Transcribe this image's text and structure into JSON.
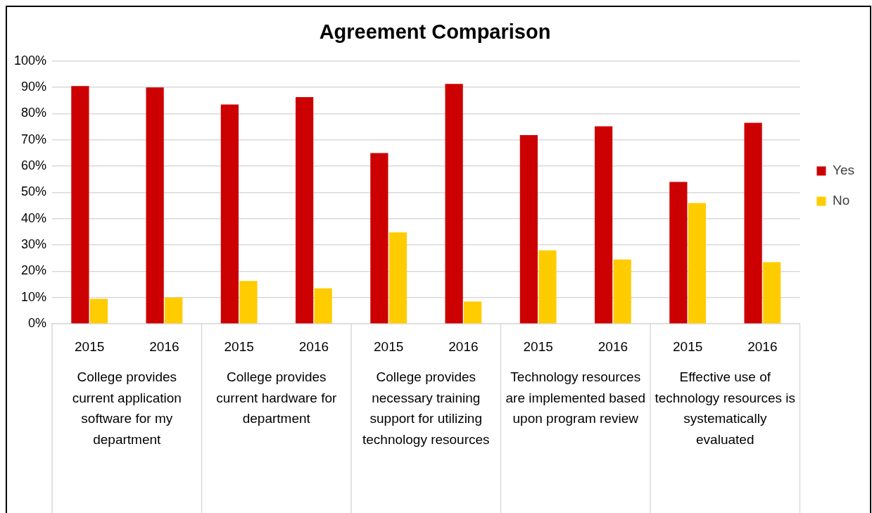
{
  "chart_data": {
    "type": "bar",
    "title": "Agreement Comparison",
    "categories": [
      "2015",
      "2016",
      "2015",
      "2016",
      "2015",
      "2016",
      "2015",
      "2016",
      "2015",
      "2016"
    ],
    "annotations": [
      "College provides current application software for my department",
      "College provides current hardware for department",
      "College provides necessary training support for utilizing technology resources",
      "Technology resources are implemented based upon program review",
      "Effective use of technology resources is systematically evaluated"
    ],
    "series": [
      {
        "name": "Yes",
        "color": "#cc0000",
        "values": [
          90.5,
          90,
          83.5,
          86.3,
          65,
          91.3,
          71.8,
          75.2,
          54,
          76.5
        ]
      },
      {
        "name": "No",
        "color": "#ffcc00",
        "values": [
          9.5,
          10,
          16.3,
          13.5,
          34.8,
          8.5,
          28,
          24.5,
          46,
          23.5
        ]
      }
    ],
    "ylim": [
      0,
      100
    ],
    "yticks": [
      {
        "value": 0,
        "label": "0%"
      },
      {
        "value": 10,
        "label": "10%"
      },
      {
        "value": 20,
        "label": "20%"
      },
      {
        "value": 30,
        "label": "30%"
      },
      {
        "value": 40,
        "label": "40%"
      },
      {
        "value": 50,
        "label": "50%"
      },
      {
        "value": 60,
        "label": "60%"
      },
      {
        "value": 70,
        "label": "70%"
      },
      {
        "value": 80,
        "label": "80%"
      },
      {
        "value": 90,
        "label": "90%"
      },
      {
        "value": 100,
        "label": "100%"
      }
    ],
    "grid": "y",
    "legend": "right"
  }
}
